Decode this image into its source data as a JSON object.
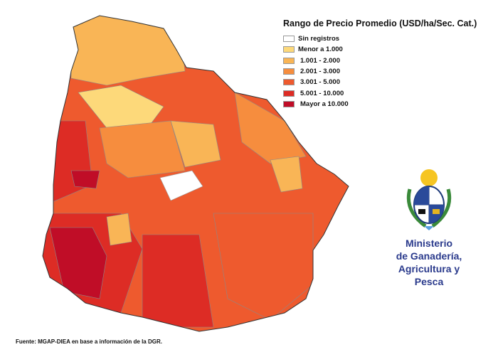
{
  "legend": {
    "title": "Rango de Precio Promedio (USD/ha/Sec. Cat.)",
    "items": [
      {
        "label": "Sin registros",
        "color": "#ffffff"
      },
      {
        "label": "Menor a 1.000",
        "color": "#fdd97a"
      },
      {
        "label": "1.001 - 2.000",
        "color": "#f9b556"
      },
      {
        "label": "2.001 - 3.000",
        "color": "#f68d3e"
      },
      {
        "label": "3.001 - 5.000",
        "color": "#ee5a2e"
      },
      {
        "label": "5.001 - 10.000",
        "color": "#dd2c25"
      },
      {
        "label": "Mayor a 10.000",
        "color": "#c00d27"
      }
    ]
  },
  "logo": {
    "lines": [
      "Ministerio",
      "de Ganadería,",
      "Agricultura y Pesca"
    ]
  },
  "source": "Fuente: MGAP-DIEA en base a información de la DGR."
}
